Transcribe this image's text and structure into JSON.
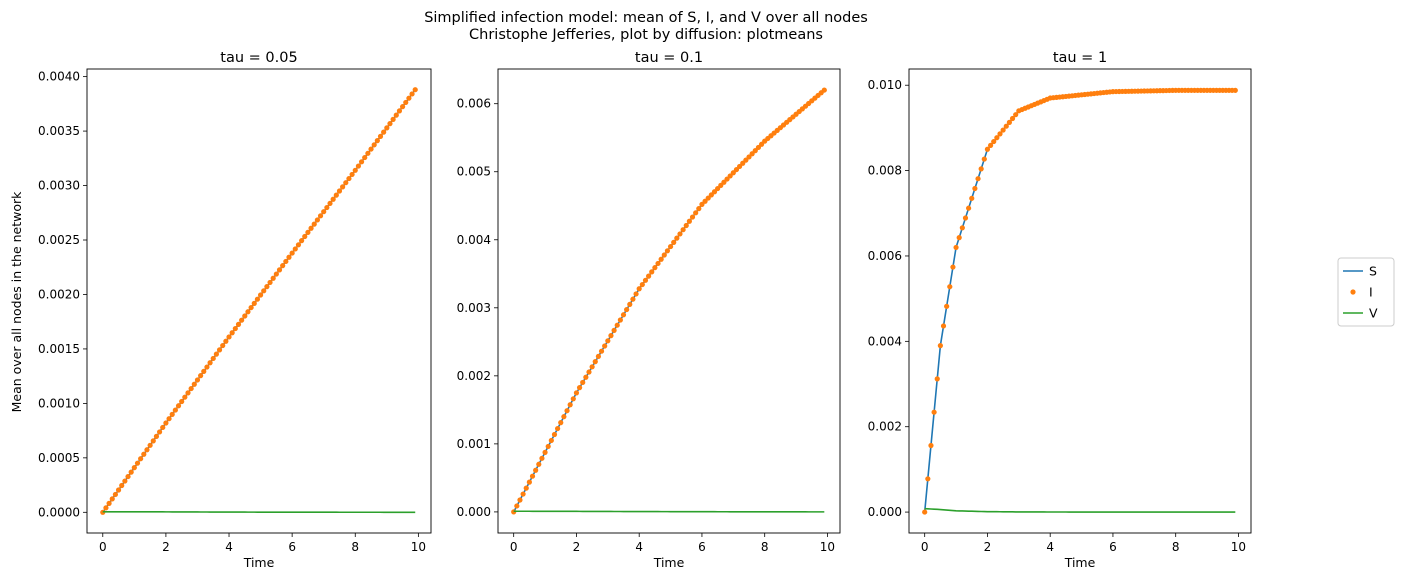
{
  "figure": {
    "suptitle": [
      "Simplified infection model: mean of S, I, and V over all nodes",
      "Christophe Jefferies, plot by diffusion: plotmeans"
    ],
    "ylabel": "Mean over all nodes in the network",
    "legend": {
      "placement": "right",
      "entries": [
        {
          "label": "S",
          "color": "#1f77b4",
          "style": "line"
        },
        {
          "label": "I",
          "color": "#ff7f0e",
          "style": "marker"
        },
        {
          "label": "V",
          "color": "#2ca02c",
          "style": "line"
        }
      ]
    }
  },
  "chart_data": [
    {
      "type": "line",
      "title": "tau = 0.05",
      "xlabel": "Time",
      "ylabel": "Mean over all nodes in the network",
      "xlim": [
        -0.5,
        10.4
      ],
      "ylim": [
        -0.00019,
        0.00407
      ],
      "xticks": [
        0,
        2,
        4,
        6,
        8,
        10
      ],
      "xtick_labels": [
        "0",
        "2",
        "4",
        "6",
        "8",
        "10"
      ],
      "yticks": [
        0,
        0.0005,
        0.001,
        0.0015,
        0.002,
        0.0025,
        0.003,
        0.0035,
        0.004
      ],
      "ytick_labels": [
        "0.0000",
        "0.0005",
        "0.0010",
        "0.0015",
        "0.0020",
        "0.0025",
        "0.0030",
        "0.0035",
        "0.0040"
      ],
      "grid": false,
      "model": {
        "type": "linear-ish",
        "end": 0.00388,
        "curvature": 0.03,
        "vmax": 6e-06,
        "vdecay": 0.3
      },
      "series": [
        {
          "name": "S",
          "color": "#1f77b4",
          "style": "line",
          "x": [
            0,
            2,
            4,
            6,
            8,
            9.9
          ],
          "values": [
            0,
            0.00082,
            0.00161,
            0.00238,
            0.00314,
            0.00388
          ]
        },
        {
          "name": "I",
          "color": "#ff7f0e",
          "style": "marker",
          "x": [
            0,
            2,
            4,
            6,
            8,
            9.9
          ],
          "values": [
            0,
            0.00082,
            0.00161,
            0.00238,
            0.00314,
            0.00388
          ]
        },
        {
          "name": "V",
          "color": "#2ca02c",
          "style": "line",
          "x": [
            0,
            2,
            4,
            6,
            8,
            9.9
          ],
          "values": [
            5e-06,
            4e-06,
            2e-06,
            1e-06,
            5e-07,
            2e-07
          ]
        }
      ]
    },
    {
      "type": "line",
      "title": "tau = 0.1",
      "xlabel": "Time",
      "ylabel": "",
      "xlim": [
        -0.5,
        10.4
      ],
      "ylim": [
        -0.00031,
        0.00651
      ],
      "xticks": [
        0,
        2,
        4,
        6,
        8,
        10
      ],
      "xtick_labels": [
        "0",
        "2",
        "4",
        "6",
        "8",
        "10"
      ],
      "yticks": [
        0,
        0.001,
        0.002,
        0.003,
        0.004,
        0.005,
        0.006
      ],
      "ytick_labels": [
        "0.000",
        "0.001",
        "0.002",
        "0.003",
        "0.004",
        "0.005",
        "0.006"
      ],
      "grid": false,
      "model": {
        "type": "linear-ish",
        "end": 0.0062,
        "curvature": 0.14,
        "vmax": 1.2e-05,
        "vdecay": 0.3
      },
      "series": [
        {
          "name": "S",
          "color": "#1f77b4",
          "style": "line",
          "x": [
            0,
            2,
            4,
            6,
            8,
            9.9
          ],
          "values": [
            0,
            0.00175,
            0.00328,
            0.00452,
            0.00545,
            0.0062
          ]
        },
        {
          "name": "I",
          "color": "#ff7f0e",
          "style": "marker",
          "x": [
            0,
            2,
            4,
            6,
            8,
            9.9
          ],
          "values": [
            0,
            0.00175,
            0.00328,
            0.00452,
            0.00545,
            0.0062
          ]
        },
        {
          "name": "V",
          "color": "#2ca02c",
          "style": "line",
          "x": [
            0,
            2,
            4,
            6,
            8,
            9.9
          ],
          "values": [
            1e-05,
            8e-06,
            5e-06,
            3e-06,
            1e-06,
            5e-07
          ]
        }
      ]
    },
    {
      "type": "line",
      "title": "tau = 1",
      "xlabel": "Time",
      "ylabel": "",
      "xlim": [
        -0.5,
        10.4
      ],
      "ylim": [
        -0.00049,
        0.01038
      ],
      "xticks": [
        0,
        2,
        4,
        6,
        8,
        10
      ],
      "xtick_labels": [
        "0",
        "2",
        "4",
        "6",
        "8",
        "10"
      ],
      "yticks": [
        0,
        0.002,
        0.004,
        0.006,
        0.008,
        0.01
      ],
      "ytick_labels": [
        "0.000",
        "0.002",
        "0.004",
        "0.006",
        "0.008",
        "0.010"
      ],
      "grid": false,
      "model": {
        "type": "saturating",
        "end": 0.00988,
        "rate": 1.0,
        "vmax": 8e-05,
        "vdecay": 1.5
      },
      "series": [
        {
          "name": "S",
          "color": "#1f77b4",
          "style": "line",
          "x": [
            0,
            0.5,
            1,
            2,
            3,
            4,
            6,
            8,
            9.9
          ],
          "values": [
            0,
            0.0039,
            0.0062,
            0.0085,
            0.0094,
            0.0097,
            0.00985,
            0.00988,
            0.00988
          ]
        },
        {
          "name": "I",
          "color": "#ff7f0e",
          "style": "marker",
          "x": [
            0,
            0.5,
            1,
            2,
            3,
            4,
            6,
            8,
            9.9
          ],
          "values": [
            0,
            0.0039,
            0.0062,
            0.0085,
            0.0094,
            0.0097,
            0.00985,
            0.00988,
            0.00988
          ]
        },
        {
          "name": "V",
          "color": "#2ca02c",
          "style": "line",
          "x": [
            0,
            0.5,
            1,
            2,
            3,
            4,
            6,
            8,
            9.9
          ],
          "values": [
            8e-05,
            6e-05,
            3e-05,
            1e-05,
            4e-06,
            2e-06,
            5e-07,
            1e-07,
            0.0
          ]
        }
      ]
    }
  ]
}
